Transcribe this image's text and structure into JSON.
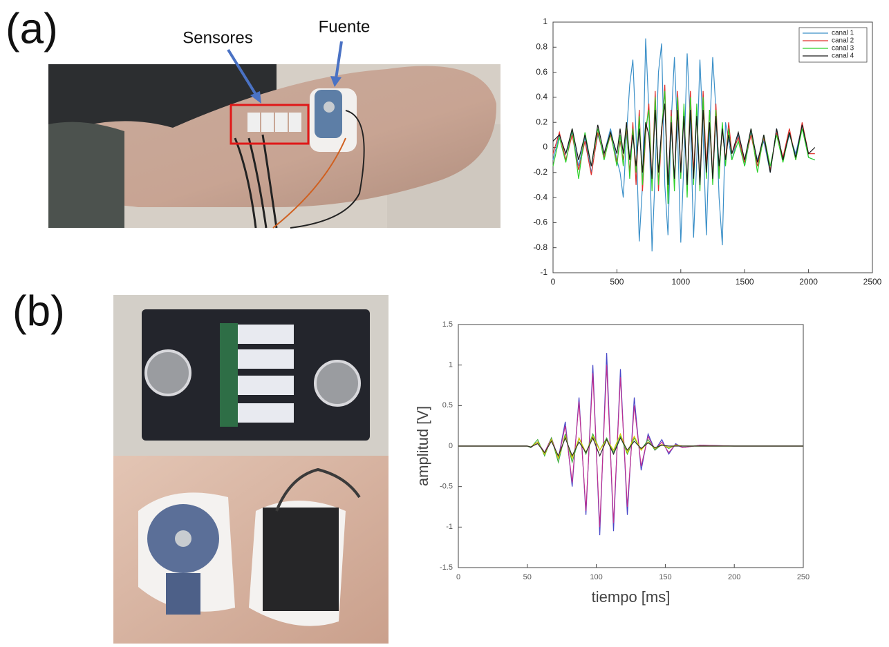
{
  "labels": {
    "a": "(a)",
    "b": "(b)",
    "sensors": "Sensores",
    "source": "Fuente"
  },
  "chart_data": [
    {
      "type": "line",
      "x": [
        0,
        50,
        100,
        150,
        200,
        250,
        300,
        350,
        400,
        450,
        500,
        525,
        550,
        575,
        600,
        625,
        650,
        675,
        700,
        725,
        750,
        775,
        800,
        825,
        850,
        875,
        900,
        925,
        950,
        975,
        1000,
        1025,
        1050,
        1075,
        1100,
        1125,
        1150,
        1175,
        1200,
        1225,
        1250,
        1275,
        1300,
        1325,
        1350,
        1375,
        1400,
        1450,
        1500,
        1550,
        1600,
        1650,
        1700,
        1750,
        1800,
        1850,
        1900,
        1950,
        2000,
        2050
      ],
      "series": [
        {
          "name": "canal 1",
          "color": "#3a8fc8",
          "values": [
            -0.1,
            0.1,
            -0.05,
            0.12,
            -0.15,
            0.08,
            -0.2,
            0.1,
            -0.05,
            0.15,
            -0.1,
            -0.2,
            -0.4,
            0.1,
            0.5,
            0.7,
            0.1,
            -0.75,
            -0.3,
            0.87,
            0.3,
            -0.83,
            -0.2,
            0.6,
            0.83,
            -0.3,
            -0.7,
            0.2,
            0.72,
            0.1,
            -0.76,
            -0.1,
            0.75,
            0.2,
            -0.72,
            -0.1,
            0.7,
            0.1,
            -0.7,
            0.1,
            0.72,
            0.3,
            -0.4,
            -0.78,
            0.2,
            0.05,
            -0.1,
            0.1,
            -0.15,
            0.12,
            -0.1,
            0.05,
            -0.2,
            0.15,
            -0.1,
            0.1,
            -0.05,
            0.18,
            -0.08,
            -0.1
          ]
        },
        {
          "name": "canal 2",
          "color": "#e0302c",
          "values": [
            -0.05,
            0.12,
            -0.1,
            0.1,
            -0.18,
            0.05,
            -0.22,
            0.12,
            -0.08,
            0.1,
            -0.12,
            0.05,
            -0.1,
            0.15,
            -0.2,
            0.2,
            -0.3,
            0.3,
            -0.35,
            0.1,
            0.35,
            -0.3,
            0.45,
            -0.35,
            0.1,
            0.5,
            -0.4,
            0.3,
            -0.3,
            0.45,
            -0.2,
            0.3,
            -0.35,
            0.45,
            -0.2,
            0.3,
            -0.3,
            0.45,
            -0.15,
            0.3,
            -0.25,
            0.35,
            -0.2,
            0.15,
            -0.1,
            0.2,
            -0.05,
            0.08,
            -0.12,
            0.1,
            -0.15,
            0.08,
            -0.18,
            0.12,
            -0.08,
            0.15,
            -0.1,
            0.2,
            -0.05,
            -0.05
          ]
        },
        {
          "name": "canal 3",
          "color": "#2ed02a",
          "values": [
            -0.15,
            0.08,
            -0.12,
            0.15,
            -0.25,
            0.12,
            -0.15,
            0.15,
            -0.1,
            0.12,
            -0.15,
            0.1,
            -0.15,
            0.2,
            -0.25,
            0.15,
            -0.2,
            0.25,
            -0.3,
            0.15,
            0.3,
            -0.35,
            0.4,
            -0.3,
            0.15,
            0.45,
            -0.45,
            0.25,
            -0.35,
            0.4,
            -0.25,
            0.35,
            -0.4,
            0.4,
            -0.3,
            0.35,
            -0.35,
            0.4,
            -0.25,
            0.3,
            -0.3,
            0.3,
            -0.25,
            0.2,
            -0.15,
            0.15,
            -0.1,
            0.05,
            -0.15,
            0.15,
            -0.2,
            0.1,
            -0.15,
            0.1,
            -0.12,
            0.12,
            -0.1,
            0.15,
            -0.08,
            -0.1
          ]
        },
        {
          "name": "canal 4",
          "color": "#1a1a1a",
          "values": [
            0.05,
            0.1,
            -0.05,
            0.15,
            -0.1,
            0.1,
            -0.15,
            0.18,
            -0.05,
            0.12,
            -0.05,
            0.15,
            -0.05,
            0.2,
            -0.1,
            0.1,
            -0.15,
            0.15,
            -0.2,
            0.2,
            0.1,
            -0.25,
            0.3,
            -0.2,
            0.15,
            0.35,
            -0.3,
            0.2,
            -0.25,
            0.3,
            -0.2,
            0.25,
            -0.3,
            0.3,
            -0.25,
            0.25,
            -0.3,
            0.3,
            -0.2,
            0.2,
            -0.25,
            0.25,
            -0.15,
            0.15,
            -0.1,
            0.1,
            -0.05,
            0.12,
            -0.1,
            0.15,
            -0.12,
            0.1,
            -0.2,
            0.15,
            -0.1,
            0.12,
            -0.08,
            0.18,
            -0.05,
            0
          ]
        }
      ],
      "xlim": [
        0,
        2500
      ],
      "xticks": [
        0,
        500,
        1000,
        1500,
        2000,
        2500
      ],
      "ylim": [
        -1,
        1
      ],
      "yticks": [
        -1,
        -0.8,
        -0.6,
        -0.4,
        -0.2,
        0,
        0.2,
        0.4,
        0.6,
        0.8,
        1
      ],
      "legend": "upper right",
      "grid": false
    },
    {
      "type": "line",
      "x": [
        0,
        25,
        50,
        52.5,
        57.5,
        62.5,
        67.5,
        72.5,
        77.5,
        82.5,
        87.5,
        92.5,
        97.5,
        102.5,
        107.5,
        112.5,
        117.5,
        122.5,
        127.5,
        132.5,
        137.5,
        142.5,
        147.5,
        152.5,
        157.5,
        162.5,
        175,
        200,
        225,
        250
      ],
      "series": [
        {
          "color": "#4848c8",
          "values": [
            0,
            0,
            0,
            -0.02,
            0.05,
            -0.08,
            0.1,
            -0.15,
            0.3,
            -0.5,
            0.6,
            -0.85,
            1.0,
            -1.1,
            1.15,
            -1.05,
            0.95,
            -0.85,
            0.6,
            -0.3,
            0.15,
            -0.05,
            0.08,
            -0.1,
            0.03,
            -0.02,
            0.01,
            0,
            0,
            0
          ]
        },
        {
          "color": "#c03090",
          "values": [
            0,
            0,
            0,
            -0.02,
            0.05,
            -0.08,
            0.1,
            -0.15,
            0.25,
            -0.45,
            0.55,
            -0.8,
            0.9,
            -1.0,
            1.0,
            -0.95,
            0.85,
            -0.75,
            0.5,
            -0.25,
            0.12,
            -0.05,
            0.05,
            -0.08,
            0.02,
            -0.02,
            0.01,
            0,
            0,
            0
          ]
        },
        {
          "color": "#40b040",
          "values": [
            0,
            0,
            0,
            -0.02,
            0.08,
            -0.12,
            0.1,
            -0.2,
            0.15,
            -0.2,
            0.1,
            -0.1,
            0.15,
            -0.05,
            0.1,
            -0.08,
            0.12,
            -0.1,
            0.1,
            -0.05,
            0.08,
            -0.05,
            0.02,
            -0.03,
            0.01,
            0,
            0,
            0,
            0,
            0
          ]
        },
        {
          "color": "#d8c800",
          "values": [
            0,
            0,
            0,
            -0.01,
            0.05,
            -0.1,
            0.08,
            -0.15,
            0.12,
            -0.15,
            0.1,
            -0.08,
            0.12,
            -0.05,
            0.08,
            -0.05,
            0.15,
            -0.08,
            0.12,
            -0.05,
            0.05,
            -0.03,
            0.02,
            -0.02,
            0.01,
            0,
            0,
            0,
            0,
            0
          ]
        },
        {
          "color": "#303030",
          "values": [
            0,
            0,
            0,
            -0.01,
            0.03,
            -0.08,
            0.06,
            -0.12,
            0.1,
            -0.12,
            0.05,
            -0.08,
            0.1,
            -0.12,
            0.08,
            -0.1,
            0.1,
            -0.05,
            0.06,
            -0.03,
            0.04,
            -0.02,
            0.01,
            0,
            0,
            0,
            0,
            0,
            0,
            0
          ]
        }
      ],
      "xlabel": "tiempo [ms]",
      "ylabel": "amplitud [V]",
      "xlim": [
        0,
        250
      ],
      "xticks": [
        0,
        50,
        100,
        150,
        200,
        250
      ],
      "ylim": [
        -1.5,
        1.5
      ],
      "yticks": [
        -1.5,
        -1,
        -0.5,
        0,
        0.5,
        1,
        1.5
      ],
      "grid": false
    }
  ]
}
